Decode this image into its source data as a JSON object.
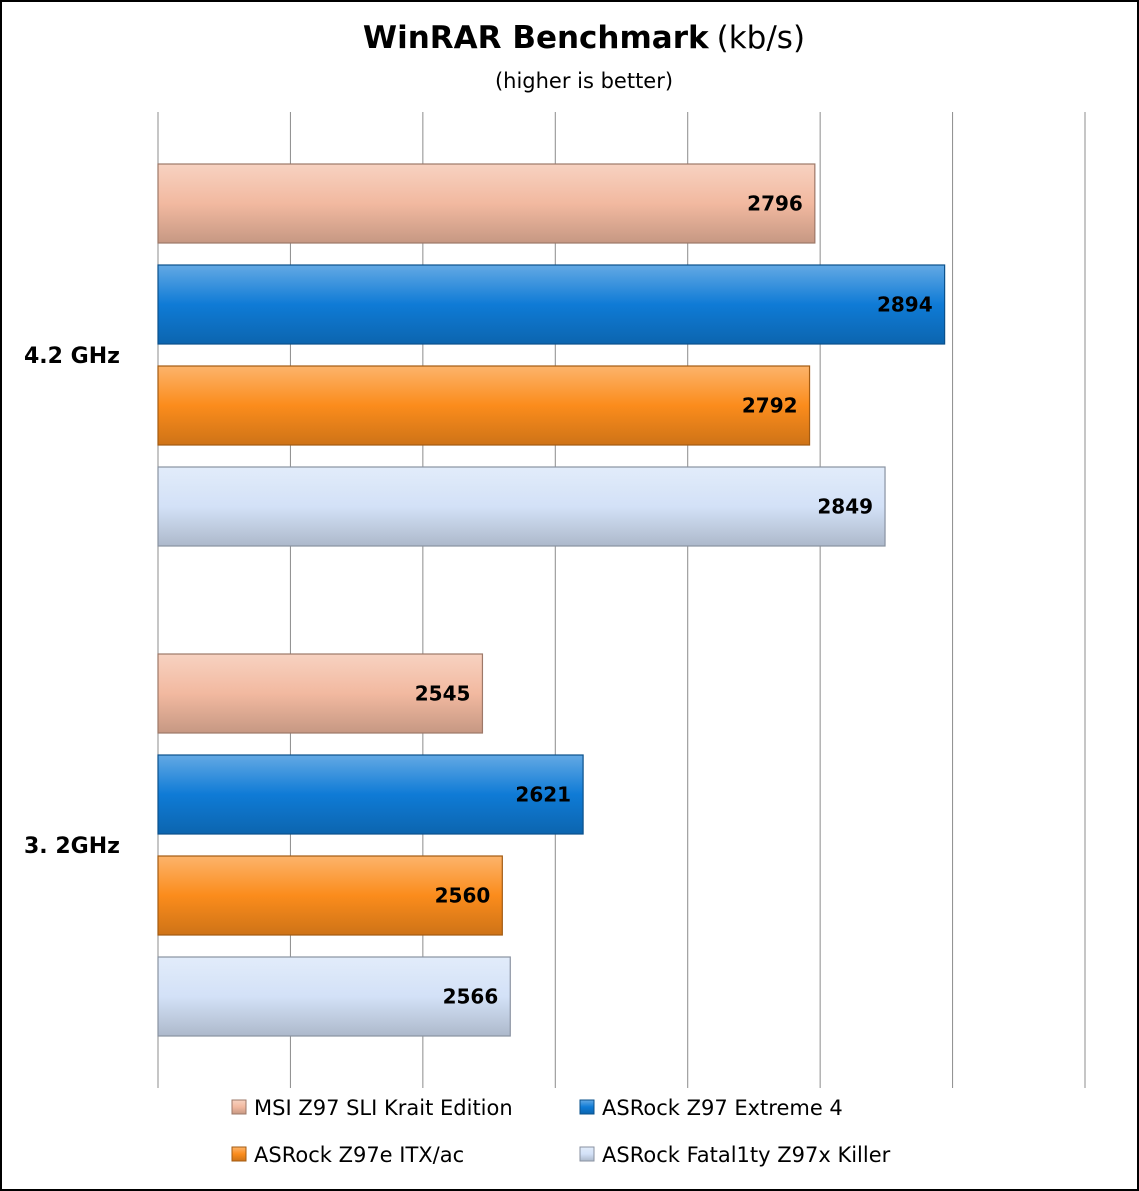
{
  "chart_data": {
    "type": "bar",
    "orientation": "horizontal",
    "title": "WinRAR Benchmark",
    "title_unit": "(kb/s)",
    "subtitle": "(higher is better)",
    "categories": [
      "4.2 GHz",
      "3. 2GHz"
    ],
    "series": [
      {
        "name": "MSI Z97 SLI Krait Edition",
        "color": "#f2b9a0",
        "values": [
          2796,
          2545
        ]
      },
      {
        "name": "ASRock Z97 Extreme 4",
        "color": "#0f7bd6",
        "values": [
          2894,
          2621
        ]
      },
      {
        "name": "ASRock Z97e ITX/ac",
        "color": "#fb8c1c",
        "values": [
          2792,
          2560
        ]
      },
      {
        "name": "ASRock Fatal1ty Z97x Killer",
        "color": "#d3e1f7",
        "values": [
          2849,
          2566
        ]
      }
    ],
    "xlim": [
      2300,
      3000
    ],
    "x_grid_step": 100,
    "grid": true,
    "data_labels": true,
    "legend_position": "bottom"
  }
}
